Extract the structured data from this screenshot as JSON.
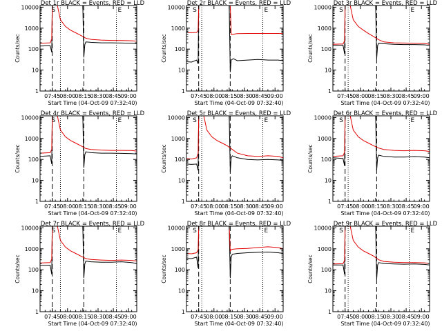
{
  "colors": {
    "events": "#000000",
    "lld": "#e00000",
    "axis": "#000000"
  },
  "common": {
    "xlabel": "Start Time (04-Oct-09 07:32:40)",
    "ylabel": "Counts/sec",
    "x_tick_labels": [
      "07:45",
      "08:00",
      "08:15",
      "08:30",
      "08:45",
      "09:00"
    ],
    "y_tick_labels": [
      "1",
      "10",
      "100",
      "1000",
      "10000"
    ],
    "markers": [
      "S",
      "E"
    ]
  },
  "chart_data": [
    {
      "type": "line",
      "title": "Det 1r BLACK = Events, RED = LLD",
      "xlim_minutes": [
        0,
        95
      ],
      "ylim": [
        1,
        12000
      ],
      "yscale": "log",
      "dashed_lines_minutes": [
        12,
        43
      ],
      "dotted_lines_minutes": [
        20,
        75,
        95
      ],
      "series": [
        {
          "name": "Events",
          "color": "#000000",
          "x": [
            0,
            10,
            11.5,
            12,
            13,
            14,
            20,
            30,
            40,
            42,
            43,
            44,
            45,
            50,
            60,
            70,
            80,
            90,
            95
          ],
          "values": [
            140,
            145,
            70,
            12000,
            12000,
            12000,
            12000,
            12000,
            12000,
            12000,
            40,
            160,
            220,
            210,
            200,
            200,
            195,
            190,
            185
          ]
        },
        {
          "name": "LLD",
          "color": "#e00000",
          "x": [
            0,
            10,
            11.5,
            12,
            13,
            14,
            17,
            20,
            25,
            30,
            35,
            40,
            45,
            50,
            60,
            70,
            80,
            90,
            95
          ],
          "values": [
            190,
            200,
            300,
            12000,
            12000,
            12000,
            12000,
            2500,
            1200,
            800,
            600,
            450,
            330,
            290,
            270,
            260,
            255,
            250,
            240
          ]
        }
      ]
    },
    {
      "type": "line",
      "title": "Det 2r BLACK = Events, RED = LLD",
      "xlim_minutes": [
        0,
        95
      ],
      "ylim": [
        1,
        12000
      ],
      "yscale": "log",
      "dashed_lines_minutes": [
        12,
        43
      ],
      "dotted_lines_minutes": [
        15,
        75,
        95
      ],
      "series": [
        {
          "name": "Events",
          "color": "#000000",
          "x": [
            0,
            5,
            10,
            11.5,
            12,
            13,
            14,
            20,
            30,
            40,
            42,
            43,
            44,
            46,
            50,
            60,
            70,
            80,
            90,
            95
          ],
          "values": [
            25,
            24,
            30,
            20,
            12000,
            12000,
            12000,
            12000,
            12000,
            12000,
            12000,
            8,
            30,
            35,
            28,
            30,
            32,
            30,
            30,
            28
          ]
        },
        {
          "name": "LLD",
          "color": "#e00000",
          "x": [
            0,
            10,
            11.5,
            12,
            14,
            20,
            30,
            40,
            43,
            44,
            50,
            60,
            70,
            80,
            90,
            95
          ],
          "values": [
            600,
            620,
            800,
            12000,
            12000,
            12000,
            12000,
            12000,
            12000,
            500,
            550,
            560,
            560,
            560,
            560,
            550
          ]
        }
      ]
    },
    {
      "type": "line",
      "title": "Det 3r BLACK = Events, RED = LLD",
      "xlim_minutes": [
        0,
        95
      ],
      "ylim": [
        1,
        12000
      ],
      "yscale": "log",
      "dashed_lines_minutes": [
        12,
        43
      ],
      "dotted_lines_minutes": [
        15,
        75,
        95
      ],
      "series": [
        {
          "name": "Events",
          "color": "#000000",
          "x": [
            0,
            10,
            11.5,
            12,
            13,
            14,
            20,
            30,
            40,
            42,
            43,
            44,
            45,
            50,
            60,
            70,
            80,
            90,
            95
          ],
          "values": [
            150,
            155,
            60,
            12000,
            12000,
            12000,
            12000,
            12000,
            12000,
            12000,
            35,
            150,
            190,
            180,
            170,
            165,
            165,
            160,
            150
          ]
        },
        {
          "name": "LLD",
          "color": "#e00000",
          "x": [
            0,
            10,
            11.5,
            12,
            13,
            14,
            17,
            20,
            25,
            30,
            35,
            40,
            45,
            50,
            60,
            70,
            80,
            90,
            95
          ],
          "values": [
            170,
            175,
            250,
            12000,
            12000,
            12000,
            12000,
            2500,
            1200,
            800,
            550,
            400,
            280,
            220,
            200,
            195,
            190,
            185,
            170
          ]
        }
      ]
    },
    {
      "type": "line",
      "title": "Det 4r BLACK = Events, RED = LLD",
      "xlim_minutes": [
        0,
        95
      ],
      "ylim": [
        1,
        12000
      ],
      "yscale": "log",
      "dashed_lines_minutes": [
        12,
        43
      ],
      "dotted_lines_minutes": [
        20,
        75,
        95
      ],
      "series": [
        {
          "name": "Events",
          "color": "#000000",
          "x": [
            0,
            10,
            11.5,
            12,
            13,
            14,
            20,
            30,
            40,
            42,
            43,
            44,
            45,
            50,
            60,
            70,
            80,
            90,
            95
          ],
          "values": [
            140,
            150,
            60,
            12000,
            12000,
            12000,
            12000,
            12000,
            12000,
            12000,
            40,
            170,
            230,
            210,
            200,
            200,
            195,
            190,
            180
          ]
        },
        {
          "name": "LLD",
          "color": "#e00000",
          "x": [
            0,
            10,
            11.5,
            12,
            13,
            14,
            17,
            20,
            25,
            30,
            35,
            40,
            45,
            50,
            60,
            70,
            80,
            90,
            95
          ],
          "values": [
            200,
            210,
            300,
            12000,
            12000,
            12000,
            12000,
            2500,
            1200,
            800,
            600,
            450,
            330,
            300,
            280,
            270,
            270,
            265,
            250
          ]
        }
      ]
    },
    {
      "type": "line",
      "title": "Det 5r BLACK = Events, RED = LLD",
      "xlim_minutes": [
        0,
        95
      ],
      "ylim": [
        1,
        12000
      ],
      "yscale": "log",
      "dashed_lines_minutes": [
        12,
        43
      ],
      "dotted_lines_minutes": [
        15,
        75,
        95
      ],
      "series": [
        {
          "name": "Events",
          "color": "#000000",
          "x": [
            0,
            5,
            10,
            11.5,
            12,
            13,
            14,
            20,
            30,
            40,
            42,
            43,
            44,
            45,
            50,
            60,
            70,
            80,
            90,
            95
          ],
          "values": [
            60,
            58,
            60,
            30,
            12000,
            12000,
            12000,
            12000,
            12000,
            12000,
            12000,
            25,
            120,
            150,
            120,
            100,
            95,
            100,
            95,
            90
          ]
        },
        {
          "name": "LLD",
          "color": "#e00000",
          "x": [
            0,
            5,
            10,
            11.5,
            12,
            13,
            14,
            17,
            20,
            25,
            30,
            35,
            40,
            45,
            50,
            60,
            70,
            80,
            90,
            95
          ],
          "values": [
            110,
            105,
            120,
            200,
            12000,
            12000,
            12000,
            12000,
            2500,
            1200,
            800,
            600,
            450,
            300,
            200,
            150,
            140,
            150,
            140,
            120
          ]
        }
      ]
    },
    {
      "type": "line",
      "title": "Det 6r BLACK = Events, RED = LLD",
      "xlim_minutes": [
        0,
        95
      ],
      "ylim": [
        1,
        12000
      ],
      "yscale": "log",
      "dashed_lines_minutes": [
        12,
        43
      ],
      "dotted_lines_minutes": [
        15,
        75,
        95
      ],
      "series": [
        {
          "name": "Events",
          "color": "#000000",
          "x": [
            0,
            10,
            11.5,
            12,
            13,
            14,
            20,
            30,
            40,
            42,
            43,
            44,
            45,
            50,
            60,
            70,
            80,
            90,
            95
          ],
          "values": [
            120,
            110,
            50,
            12000,
            12000,
            12000,
            12000,
            12000,
            12000,
            12000,
            30,
            120,
            160,
            140,
            130,
            130,
            135,
            130,
            120
          ]
        },
        {
          "name": "LLD",
          "color": "#e00000",
          "x": [
            0,
            10,
            11.5,
            12,
            13,
            14,
            17,
            20,
            25,
            30,
            35,
            40,
            45,
            50,
            60,
            70,
            80,
            90,
            95
          ],
          "values": [
            140,
            150,
            220,
            12000,
            12000,
            12000,
            12000,
            2500,
            1200,
            800,
            600,
            450,
            350,
            300,
            270,
            260,
            270,
            260,
            240
          ]
        }
      ]
    },
    {
      "type": "line",
      "title": "Det 7r BLACK = Events, RED = LLD",
      "xlim_minutes": [
        0,
        95
      ],
      "ylim": [
        1,
        12000
      ],
      "yscale": "log",
      "dashed_lines_minutes": [
        12,
        43
      ],
      "dotted_lines_minutes": [
        20,
        75,
        95
      ],
      "series": [
        {
          "name": "Events",
          "color": "#000000",
          "x": [
            0,
            10,
            11.5,
            12,
            13,
            14,
            20,
            30,
            40,
            42,
            43,
            44,
            45,
            50,
            60,
            70,
            80,
            90,
            95
          ],
          "values": [
            160,
            165,
            60,
            12000,
            12000,
            12000,
            12000,
            12000,
            12000,
            12000,
            40,
            190,
            260,
            240,
            230,
            230,
            240,
            220,
            200
          ]
        },
        {
          "name": "LLD",
          "color": "#e00000",
          "x": [
            0,
            10,
            11.5,
            12,
            13,
            14,
            17,
            20,
            25,
            30,
            35,
            40,
            45,
            50,
            60,
            70,
            80,
            90,
            95
          ],
          "values": [
            210,
            220,
            320,
            12000,
            12000,
            12000,
            12000,
            2500,
            1200,
            800,
            600,
            450,
            340,
            310,
            290,
            280,
            290,
            280,
            260
          ]
        }
      ]
    },
    {
      "type": "line",
      "title": "Det 8r BLACK = Events, RED = LLD",
      "xlim_minutes": [
        0,
        95
      ],
      "ylim": [
        1,
        12000
      ],
      "yscale": "log",
      "dashed_lines_minutes": [
        12,
        43
      ],
      "dotted_lines_minutes": [
        15,
        75,
        95
      ],
      "series": [
        {
          "name": "Events",
          "color": "#000000",
          "x": [
            0,
            5,
            10,
            11.5,
            12,
            13,
            14,
            20,
            30,
            40,
            42,
            43,
            44,
            45,
            50,
            60,
            70,
            80,
            90,
            95
          ],
          "values": [
            350,
            340,
            400,
            120,
            12000,
            12000,
            12000,
            12000,
            12000,
            12000,
            12000,
            40,
            400,
            550,
            600,
            650,
            680,
            700,
            650,
            600
          ]
        },
        {
          "name": "LLD",
          "color": "#e00000",
          "x": [
            0,
            5,
            10,
            11.5,
            12,
            13,
            14,
            20,
            30,
            40,
            42,
            43,
            44,
            45,
            50,
            60,
            70,
            80,
            90,
            95
          ],
          "values": [
            600,
            580,
            650,
            900,
            12000,
            12000,
            12000,
            12000,
            12000,
            12000,
            12000,
            800,
            900,
            950,
            1000,
            1050,
            1150,
            1250,
            1150,
            1000
          ]
        }
      ]
    },
    {
      "type": "line",
      "title": "Det 9r BLACK = Events, RED = LLD",
      "xlim_minutes": [
        0,
        95
      ],
      "ylim": [
        1,
        12000
      ],
      "yscale": "log",
      "dashed_lines_minutes": [
        12,
        43
      ],
      "dotted_lines_minutes": [
        15,
        75,
        95
      ],
      "series": [
        {
          "name": "Events",
          "color": "#000000",
          "x": [
            0,
            10,
            11.5,
            12,
            13,
            14,
            20,
            30,
            40,
            42,
            43,
            44,
            45,
            50,
            60,
            70,
            80,
            90,
            95
          ],
          "values": [
            170,
            170,
            60,
            12000,
            12000,
            12000,
            12000,
            12000,
            12000,
            12000,
            35,
            170,
            220,
            200,
            190,
            185,
            190,
            180,
            170
          ]
        },
        {
          "name": "LLD",
          "color": "#e00000",
          "x": [
            0,
            10,
            11.5,
            12,
            13,
            14,
            17,
            20,
            25,
            30,
            35,
            40,
            45,
            50,
            60,
            70,
            80,
            90,
            95
          ],
          "values": [
            190,
            195,
            280,
            12000,
            12000,
            12000,
            12000,
            2500,
            1200,
            800,
            600,
            450,
            300,
            250,
            230,
            220,
            220,
            215,
            200
          ]
        }
      ]
    }
  ]
}
